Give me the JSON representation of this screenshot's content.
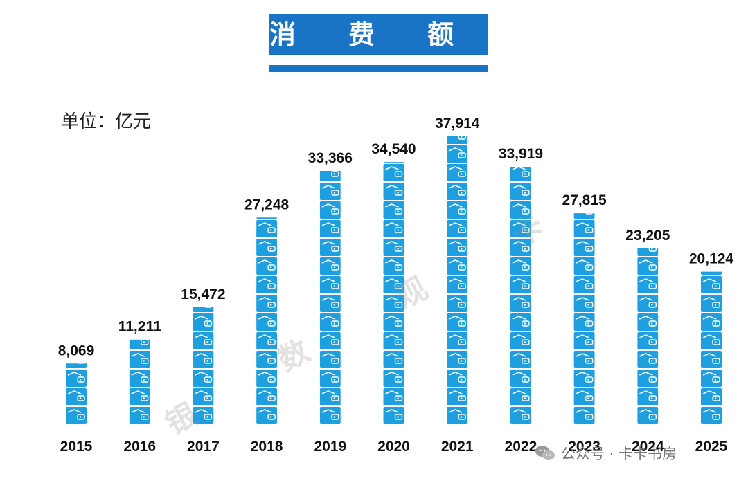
{
  "header": {
    "title": "消　　费　　额"
  },
  "unit_label": "单位：亿元",
  "watermark": [
    "银",
    "数",
    "观",
    "卡"
  ],
  "footer": {
    "icon": "wechat-icon",
    "text": "公众号 · 卡卡书房"
  },
  "colors": {
    "accent": "#1a74c6",
    "bar": "#1ea0e0",
    "bar_stripe": "#ffffff"
  },
  "chart_data": {
    "type": "bar",
    "title": "消费额",
    "ylabel": "单位：亿元",
    "xlabel": "",
    "categories": [
      "2015",
      "2016",
      "2017",
      "2018",
      "2019",
      "2020",
      "2021",
      "2022",
      "2023",
      "2024",
      "2025"
    ],
    "values": [
      8069,
      11211,
      15472,
      27248,
      33366,
      34540,
      37914,
      33919,
      27815,
      23205,
      20124
    ],
    "value_labels": [
      "8,069",
      "11,211",
      "15,472",
      "27,248",
      "33,366",
      "34,540",
      "37,914",
      "33,919",
      "27,815",
      "23,205",
      "20,124"
    ],
    "ylim": [
      0,
      37914
    ],
    "grid": false,
    "legend": "none"
  }
}
